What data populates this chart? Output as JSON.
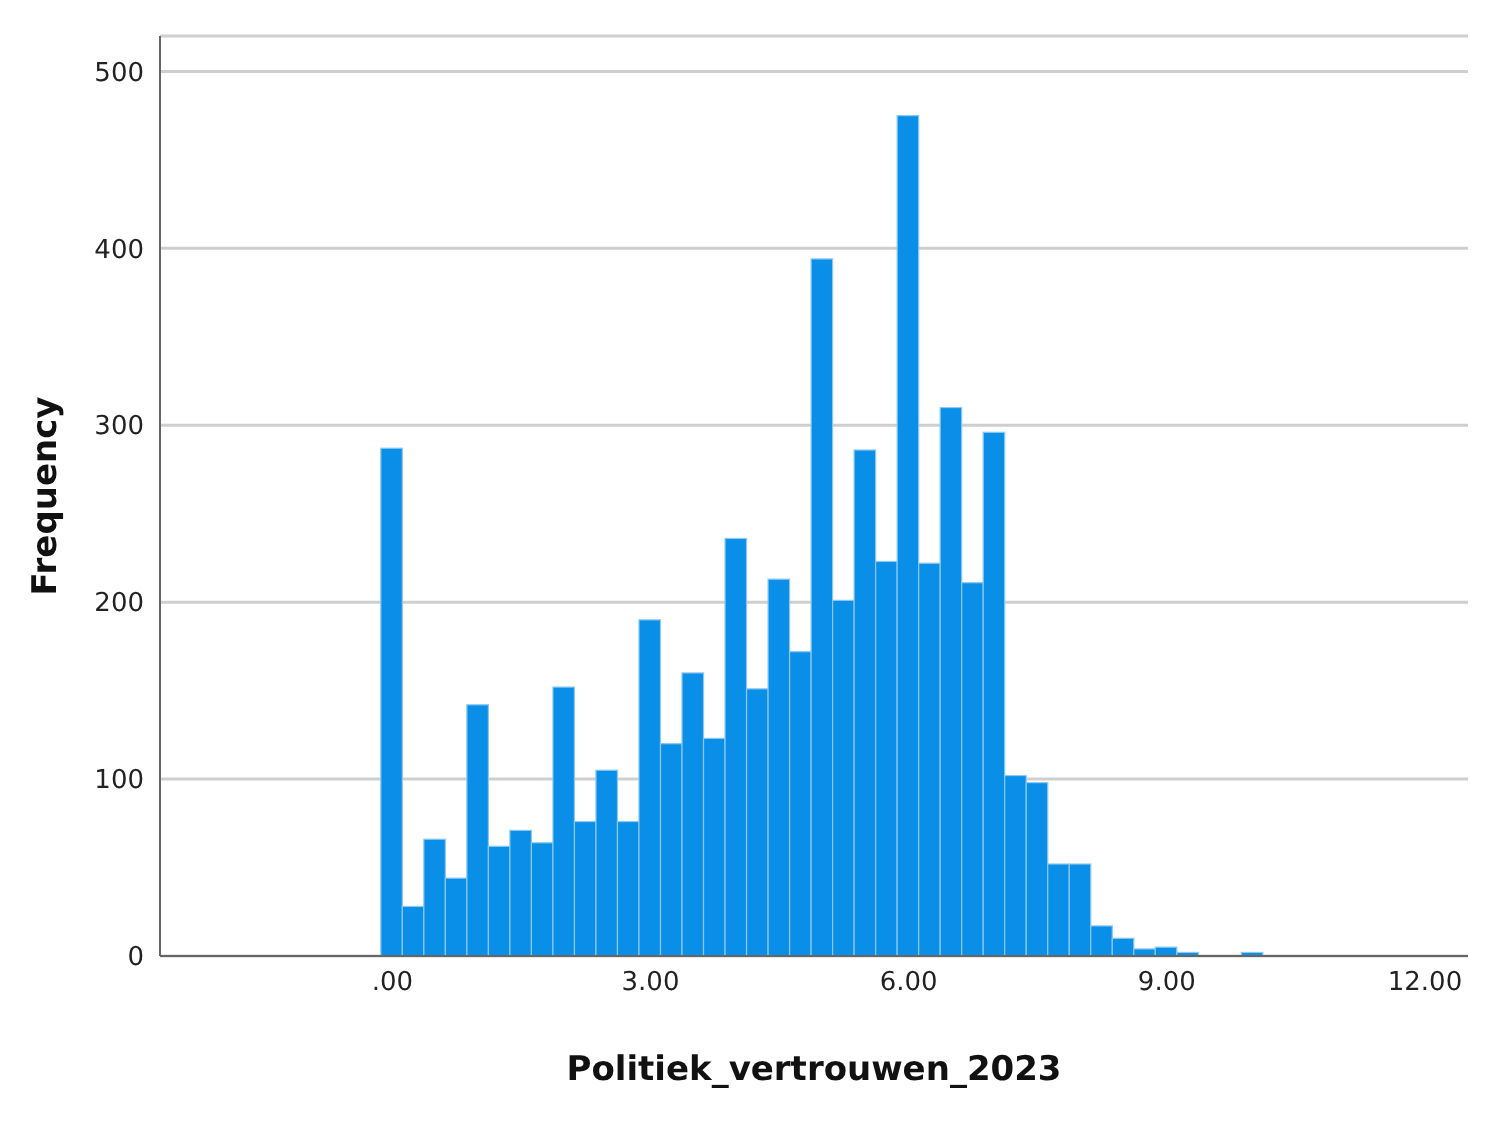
{
  "chart_data": {
    "type": "histogram",
    "xlabel": "Politiek_vertrouwen_2023",
    "ylabel": "Frequency",
    "bins": [
      -0.125,
      0.125,
      0.375,
      0.625,
      0.875,
      1.125,
      1.375,
      1.625,
      1.875,
      2.125,
      2.375,
      2.625,
      2.875,
      3.125,
      3.375,
      3.625,
      3.875,
      4.125,
      4.375,
      4.625,
      4.875,
      5.125,
      5.375,
      5.625,
      5.875,
      6.125,
      6.375,
      6.625,
      6.875,
      7.125,
      7.375,
      7.625,
      7.875,
      8.125,
      8.375,
      8.625,
      8.875,
      9.125,
      9.375,
      9.625,
      9.875,
      10.125
    ],
    "values": [
      287,
      28,
      66,
      44,
      142,
      62,
      71,
      64,
      152,
      76,
      105,
      76,
      190,
      120,
      160,
      123,
      236,
      151,
      213,
      172,
      394,
      201,
      286,
      223,
      475,
      222,
      310,
      211,
      296,
      102,
      98,
      52,
      52,
      17,
      10,
      4,
      5,
      2,
      0,
      0,
      2
    ],
    "color": "#0a8fe8",
    "xlim": [
      -2.7,
      12.5
    ],
    "xticks": [
      {
        "value": 0,
        "label": ".00"
      },
      {
        "value": 3,
        "label": "3.00"
      },
      {
        "value": 6,
        "label": "6.00"
      },
      {
        "value": 9,
        "label": "9.00"
      },
      {
        "value": 12,
        "label": "12.00"
      }
    ],
    "ylim": [
      0,
      520
    ],
    "yticks": [
      0,
      100,
      200,
      300,
      400,
      500
    ],
    "grid": "y"
  }
}
